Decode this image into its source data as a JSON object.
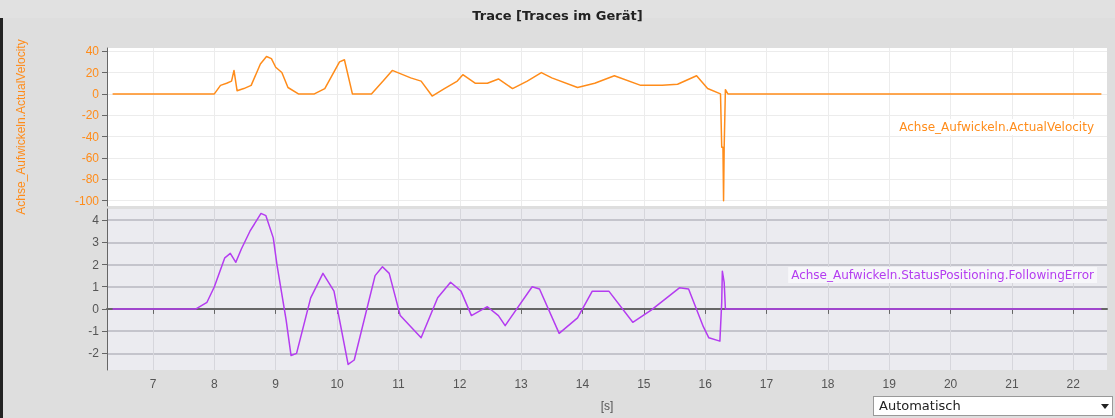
{
  "chart_data": [
    {
      "type": "line",
      "title": "Trace [Traces im Gerät]",
      "ylabel": "Achse_Aufwickeln.ActualVelocity",
      "xlim": [
        6.25,
        22.55
      ],
      "xticks": [
        7,
        8,
        9,
        10,
        11,
        12,
        13,
        14,
        15,
        16,
        17,
        18,
        19,
        20,
        21,
        22
      ],
      "ylim": [
        -105,
        43
      ],
      "yticks": [
        -100,
        -80,
        -60,
        -40,
        -20,
        0,
        20,
        40
      ],
      "grid": true,
      "marker": "none",
      "line_style": "solid",
      "tick_labels": "y",
      "series": [
        {
          "name": "Achse_Aufwickeln.ActualVelocity",
          "color": "#ff8c1a",
          "x": [
            6.35,
            8.0,
            8.1,
            8.2,
            8.28,
            8.32,
            8.37,
            8.48,
            8.6,
            8.75,
            8.85,
            8.93,
            9.0,
            9.1,
            9.2,
            9.37,
            9.63,
            9.8,
            10.04,
            10.12,
            10.25,
            10.56,
            10.75,
            10.9,
            11.2,
            11.37,
            11.55,
            11.75,
            11.96,
            12.05,
            12.25,
            12.45,
            12.63,
            12.86,
            13.1,
            13.33,
            13.5,
            13.92,
            14.2,
            14.52,
            14.95,
            15.3,
            15.55,
            15.86,
            16.04,
            16.25,
            16.27,
            16.29,
            16.3,
            16.31,
            16.33,
            16.37,
            22.45
          ],
          "values": [
            0,
            0,
            8,
            10,
            12,
            22,
            3,
            5,
            8,
            28,
            35,
            33,
            25,
            20,
            6,
            0,
            0,
            5,
            30,
            32,
            0,
            0,
            12,
            22,
            15,
            12,
            -2,
            5,
            12,
            18,
            10,
            10,
            14,
            5,
            12,
            20,
            15,
            6,
            10,
            17,
            8,
            8,
            9,
            17,
            5,
            0,
            -50,
            -50,
            -100,
            -50,
            4,
            0,
            0
          ]
        }
      ]
    },
    {
      "type": "line",
      "xlabel": "[s]",
      "xlim": [
        6.25,
        22.55
      ],
      "xticks": [
        7,
        8,
        9,
        10,
        11,
        12,
        13,
        14,
        15,
        16,
        17,
        18,
        19,
        20,
        21,
        22
      ],
      "ylim": [
        -2.75,
        4.5
      ],
      "yticks": [
        -2,
        -1,
        0,
        1,
        2,
        3,
        4
      ],
      "grid": true,
      "marker": "none",
      "line_style": "solid",
      "annotations": [
        "Automatisch"
      ],
      "series": [
        {
          "name": "Achse_Aufwickeln.StatusPositioning.FollowingError",
          "color": "#b43cf0",
          "x": [
            6.35,
            7.7,
            7.88,
            8.0,
            8.17,
            8.26,
            8.35,
            8.44,
            8.58,
            8.76,
            8.84,
            8.96,
            9.02,
            9.17,
            9.25,
            9.34,
            9.57,
            9.77,
            9.95,
            10.18,
            10.28,
            10.62,
            10.74,
            10.85,
            11.03,
            11.37,
            11.64,
            11.85,
            12.02,
            12.19,
            12.45,
            12.63,
            12.74,
            13.18,
            13.3,
            13.62,
            13.92,
            14.16,
            14.43,
            14.82,
            15.12,
            15.58,
            15.73,
            15.97,
            16.06,
            16.24,
            16.27,
            16.28,
            16.31,
            16.33,
            22.45
          ],
          "values": [
            0,
            0,
            0.3,
            1,
            2.3,
            2.5,
            2.1,
            2.7,
            3.5,
            4.3,
            4.2,
            3.2,
            2,
            -0.5,
            -2.1,
            -2,
            0.5,
            1.6,
            0.8,
            -2.5,
            -2.3,
            1.5,
            1.9,
            1.6,
            -0.3,
            -1.3,
            0.5,
            1.2,
            0.8,
            -0.3,
            0.1,
            -0.3,
            -0.75,
            1,
            0.9,
            -1.1,
            -0.4,
            0.8,
            0.8,
            -0.6,
            -0.05,
            0.95,
            0.9,
            -0.8,
            -1.3,
            -1.45,
            0.3,
            1.7,
            1.2,
            0,
            0
          ]
        }
      ]
    }
  ]
}
